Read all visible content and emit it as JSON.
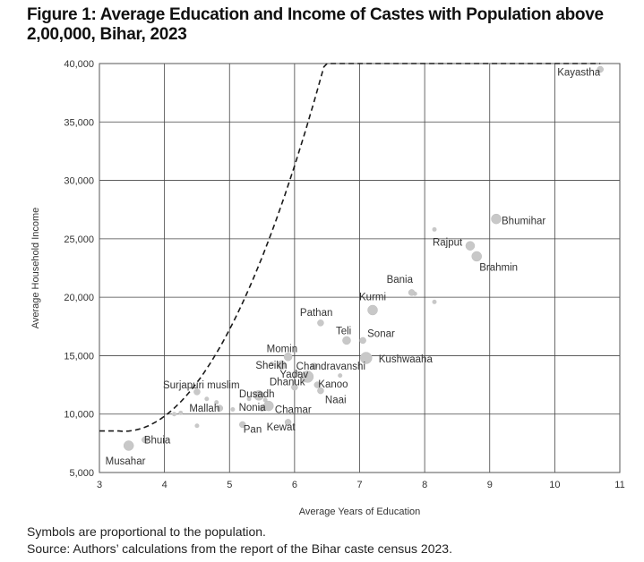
{
  "figure": {
    "title": "Figure 1: Average Education and Income of Castes with Population above 2,00,000, Bihar, 2023",
    "note": "Symbols are proportional to the population.",
    "source": "Source: Authors’ calculations from the report of the Bihar caste census 2023."
  },
  "chart_data": {
    "type": "scatter",
    "title": "Figure 1: Average Education and Income of Castes with Population above 2,00,000, Bihar, 2023",
    "xlabel": "Average Years of Education",
    "ylabel": "Average Household Income",
    "xlim": [
      3,
      11
    ],
    "ylim": [
      5000,
      40000
    ],
    "x_ticks": [
      3,
      4,
      5,
      6,
      7,
      8,
      9,
      10,
      11
    ],
    "y_ticks": [
      5000,
      10000,
      15000,
      20000,
      25000,
      30000,
      35000,
      40000
    ],
    "y_tick_labels": [
      "5,000",
      "10,000",
      "15,000",
      "20,000",
      "25,000",
      "30,000",
      "35,000",
      "40,000"
    ],
    "grid": true,
    "trendline": {
      "style": "dashed",
      "kind": "quadratic fit"
    },
    "point_color": "#c8c8c8",
    "labeled_points": [
      {
        "label": "Kayastha",
        "x": 10.7,
        "y": 39500
      },
      {
        "label": "Bhumihar",
        "x": 9.1,
        "y": 26700
      },
      {
        "label": "Rajput",
        "x": 8.7,
        "y": 24400
      },
      {
        "label": "Brahmin",
        "x": 8.8,
        "y": 23500
      },
      {
        "label": "Bania",
        "x": 7.8,
        "y": 20400
      },
      {
        "label": "Kurmi",
        "x": 7.2,
        "y": 18900
      },
      {
        "label": "Pathan",
        "x": 6.4,
        "y": 17800
      },
      {
        "label": "Teli",
        "x": 6.8,
        "y": 16300
      },
      {
        "label": "Sonar",
        "x": 7.05,
        "y": 16300
      },
      {
        "label": "Kushwaaha",
        "x": 7.1,
        "y": 14800
      },
      {
        "label": "Momin",
        "x": 5.9,
        "y": 14900
      },
      {
        "label": "Sheikh",
        "x": 5.8,
        "y": 14200
      },
      {
        "label": "Chandravanshi",
        "x": 6.3,
        "y": 14100
      },
      {
        "label": "Yadav",
        "x": 6.2,
        "y": 13200
      },
      {
        "label": "Kanoo",
        "x": 6.35,
        "y": 12500
      },
      {
        "label": "Dhanuk",
        "x": 6.0,
        "y": 12300
      },
      {
        "label": "Surjapuri muslim",
        "x": 4.5,
        "y": 11900
      },
      {
        "label": "Dusadh",
        "x": 5.45,
        "y": 11600
      },
      {
        "label": "Naai",
        "x": 6.4,
        "y": 12000
      },
      {
        "label": "Mallah",
        "x": 4.85,
        "y": 10500
      },
      {
        "label": "Nonia",
        "x": 5.5,
        "y": 10500
      },
      {
        "label": "Chamar",
        "x": 5.6,
        "y": 10700
      },
      {
        "label": "Pan",
        "x": 5.2,
        "y": 9100
      },
      {
        "label": "Kewat",
        "x": 5.9,
        "y": 9300
      },
      {
        "label": "Bhuia",
        "x": 3.7,
        "y": 7800
      },
      {
        "label": "Musahar",
        "x": 3.45,
        "y": 7300
      }
    ],
    "unlabeled_points": [
      {
        "x": 4.15,
        "y": 10000
      },
      {
        "x": 4.25,
        "y": 10100
      },
      {
        "x": 4.5,
        "y": 9000
      },
      {
        "x": 4.65,
        "y": 11300
      },
      {
        "x": 4.8,
        "y": 11000
      },
      {
        "x": 5.05,
        "y": 10400
      },
      {
        "x": 5.3,
        "y": 11300
      },
      {
        "x": 5.55,
        "y": 11200
      },
      {
        "x": 6.05,
        "y": 13500
      },
      {
        "x": 6.15,
        "y": 12900
      },
      {
        "x": 6.7,
        "y": 13300
      },
      {
        "x": 8.15,
        "y": 25800
      },
      {
        "x": 8.15,
        "y": 19600
      },
      {
        "x": 7.85,
        "y": 20300
      },
      {
        "x": 5.65,
        "y": 14300
      }
    ]
  }
}
